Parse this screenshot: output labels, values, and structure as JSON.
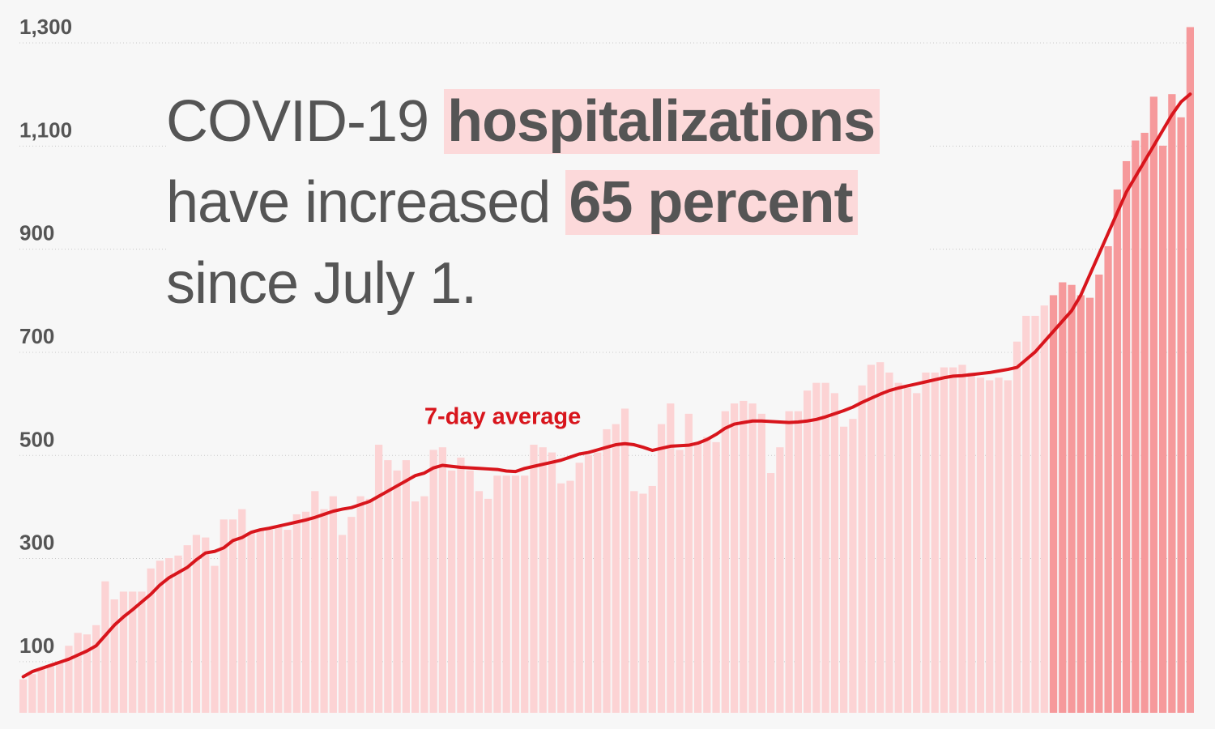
{
  "headline": {
    "part1": "COVID-19 ",
    "highlight1": "hospitalizations",
    "part2": "have increased ",
    "highlight2": "65 percent",
    "part3": "since July 1."
  },
  "colors": {
    "background": "#f7f7f7",
    "bar_light": "#fcd3d4",
    "bar_recent": "#f6999b",
    "average_line": "#d8151c",
    "highlight": "#fcd9da",
    "text": "#555555"
  },
  "chart_data": {
    "type": "bar",
    "title": "",
    "xlabel": "",
    "ylabel": "",
    "ylim": [
      0,
      1330
    ],
    "yticks": [
      100,
      300,
      500,
      700,
      900,
      1100,
      1300
    ],
    "ytick_labels": [
      "100",
      "300",
      "500",
      "700",
      "900",
      "1,100",
      "1,300"
    ],
    "grid": true,
    "highlight_from_index": 113,
    "series": [
      {
        "kind": "bar",
        "values": [
          65,
          75,
          85,
          90,
          100,
          130,
          155,
          152,
          170,
          255,
          220,
          235,
          235,
          235,
          280,
          295,
          300,
          305,
          325,
          345,
          340,
          285,
          375,
          375,
          395,
          350,
          355,
          355,
          360,
          355,
          385,
          390,
          430,
          395,
          420,
          345,
          380,
          420,
          415,
          520,
          490,
          470,
          490,
          410,
          420,
          510,
          515,
          470,
          495,
          470,
          430,
          415,
          460,
          460,
          460,
          460,
          520,
          515,
          505,
          445,
          450,
          485,
          500,
          505,
          550,
          560,
          590,
          430,
          425,
          440,
          560,
          600,
          510,
          580,
          525,
          535,
          525,
          585,
          600,
          605,
          600,
          580,
          465,
          515,
          585,
          585,
          625,
          640,
          640,
          620,
          555,
          570,
          635,
          675,
          680,
          660,
          640,
          630,
          620,
          660,
          660,
          670,
          670,
          675,
          660,
          650,
          645,
          650,
          645,
          720,
          770,
          770,
          790,
          810,
          835,
          830,
          810,
          805,
          850,
          905,
          1015,
          1070,
          1110,
          1125,
          1195,
          1100,
          1200,
          1155,
          1330
        ]
      },
      {
        "kind": "line",
        "name": "7-day average",
        "values": [
          70,
          80,
          86,
          92,
          98,
          104,
          112,
          120,
          130,
          150,
          170,
          186,
          200,
          215,
          230,
          248,
          262,
          272,
          282,
          297,
          310,
          313,
          320,
          334,
          340,
          350,
          355,
          358,
          362,
          366,
          370,
          374,
          379,
          385,
          391,
          395,
          398,
          404,
          410,
          420,
          430,
          440,
          450,
          460,
          465,
          475,
          480,
          478,
          476,
          475,
          474,
          473,
          472,
          469,
          468,
          474,
          478,
          482,
          486,
          490,
          496,
          502,
          505,
          510,
          515,
          520,
          522,
          520,
          515,
          509,
          513,
          517,
          518,
          519,
          523,
          530,
          540,
          552,
          560,
          563,
          566,
          566,
          565,
          564,
          563,
          564,
          566,
          569,
          574,
          580,
          586,
          593,
          602,
          610,
          618,
          625,
          630,
          634,
          638,
          642,
          646,
          650,
          653,
          654,
          656,
          658,
          660,
          663,
          666,
          670,
          685,
          700,
          720,
          740,
          760,
          780,
          810,
          850,
          890,
          930,
          970,
          1010,
          1040,
          1070,
          1100,
          1130,
          1160,
          1185,
          1200
        ]
      }
    ],
    "annotations": [
      {
        "text": "7-day average",
        "at_index": 53,
        "at_value": 560
      }
    ]
  }
}
